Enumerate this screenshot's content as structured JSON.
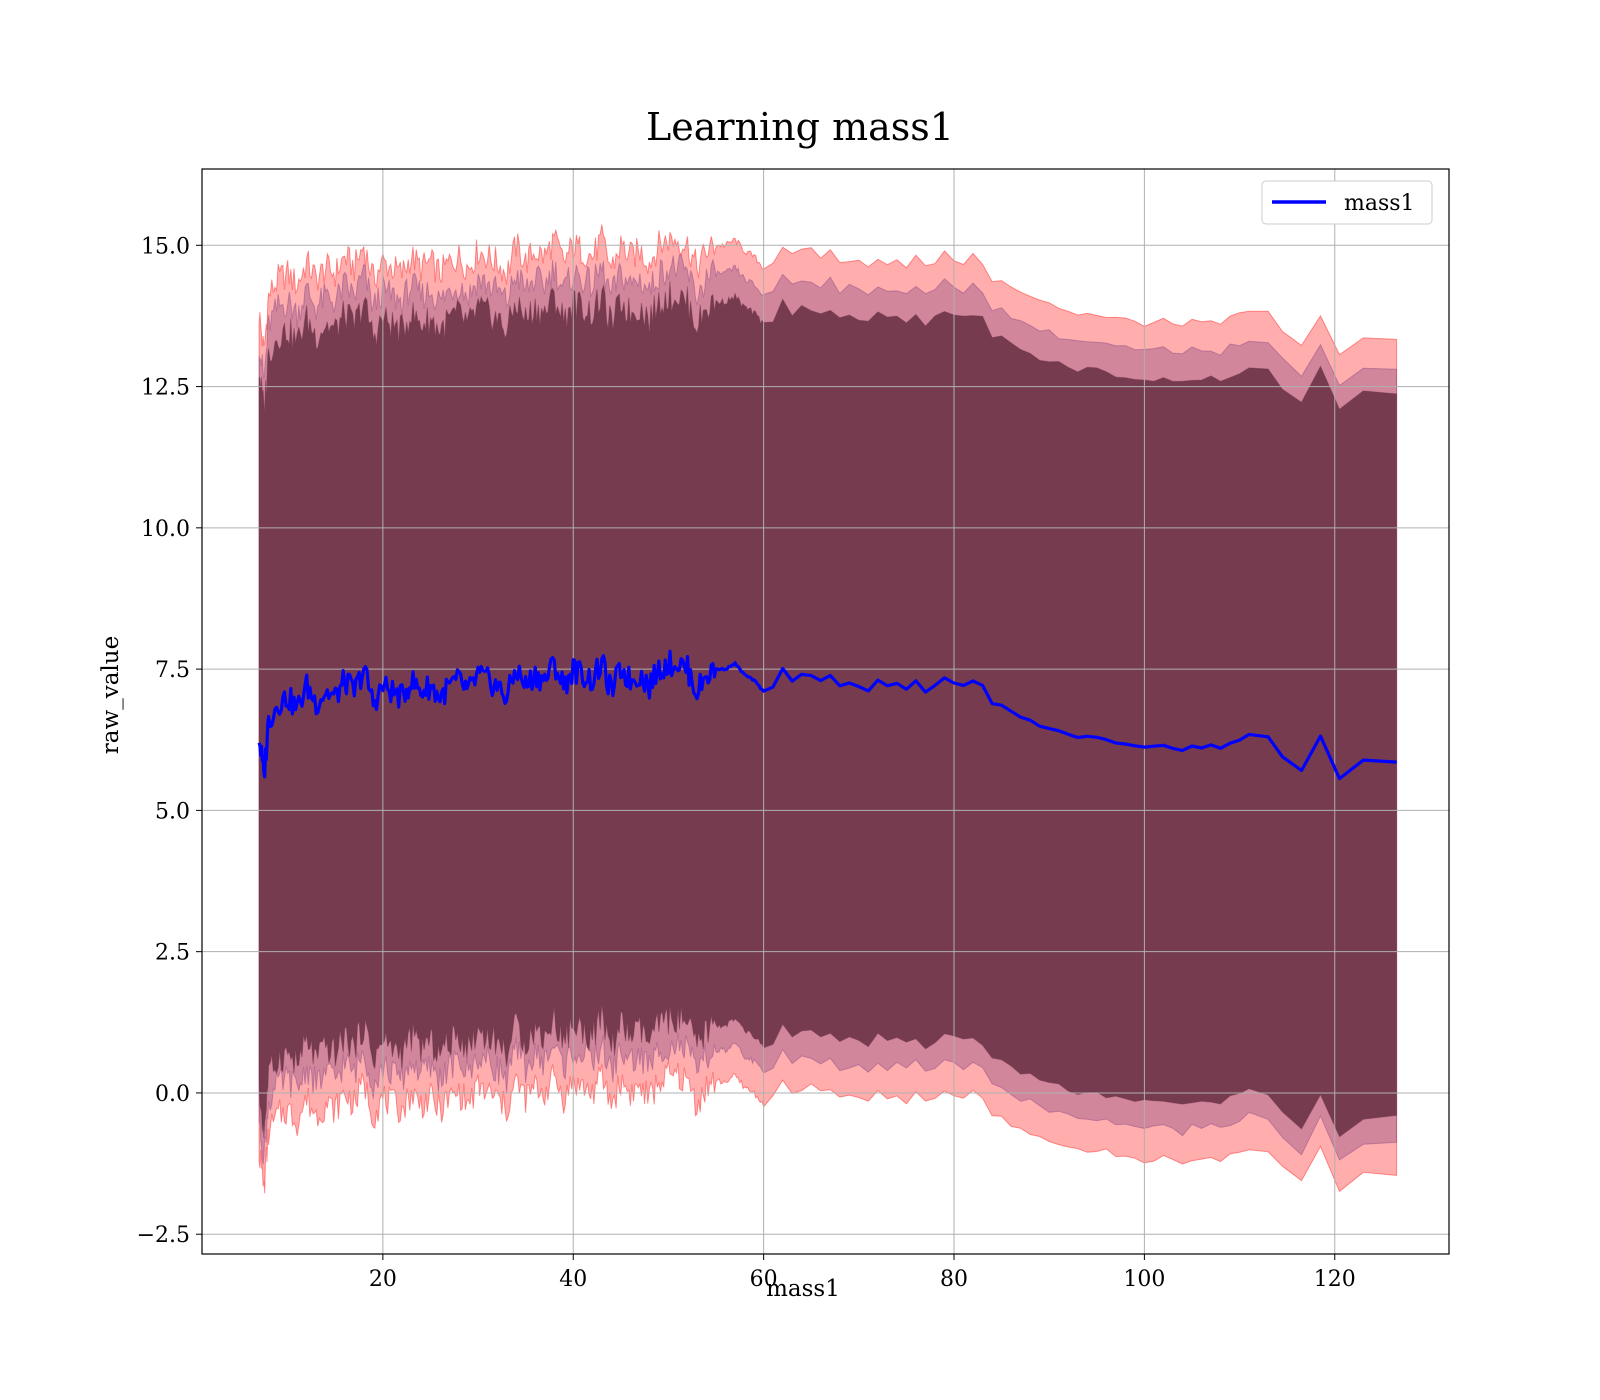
{
  "chart_data": {
    "type": "line",
    "title": "Learning mass1",
    "xlabel": "mass1",
    "ylabel": "raw_value",
    "xlim": [
      1,
      132
    ],
    "ylim": [
      -2.85,
      16.35
    ],
    "xticks": [
      20,
      40,
      60,
      80,
      100,
      120
    ],
    "yticks": [
      -2.5,
      0.0,
      2.5,
      5.0,
      7.5,
      10.0,
      12.5,
      15.0
    ],
    "ytick_labels": [
      "−2.5",
      "0.0",
      "2.5",
      "5.0",
      "7.5",
      "10.0",
      "12.5",
      "15.0"
    ],
    "grid": true,
    "legend_position": "top-right",
    "colors": {
      "line": "#0000ff",
      "band_outer": "#ff0000",
      "band_inner": "#7f3f7f",
      "band_core": "#6b3346",
      "grid": "#b0b0b0"
    },
    "series": [
      {
        "name": "mass1",
        "x": [
          7,
          7.5,
          8,
          9,
          10,
          11,
          12,
          13,
          14,
          15,
          16,
          17,
          18,
          19,
          20,
          21,
          22,
          23,
          24,
          25,
          26,
          27,
          28,
          29,
          30,
          31,
          32,
          33,
          34,
          35,
          36,
          37,
          38,
          39,
          40,
          41,
          42,
          43,
          44,
          45,
          46,
          47,
          48,
          49,
          50,
          51,
          52,
          53,
          54,
          55,
          56,
          57,
          58,
          59,
          60,
          61,
          62,
          63,
          64,
          65,
          66,
          67,
          68,
          69,
          70,
          71,
          72,
          73,
          74,
          75,
          76,
          77,
          78,
          79,
          80,
          81,
          82,
          83,
          84,
          85,
          86,
          87,
          88,
          89,
          90,
          91,
          92,
          93,
          94,
          95,
          96,
          97,
          98,
          99,
          100,
          101,
          102,
          103,
          104,
          105,
          106,
          107,
          108,
          109,
          110,
          111,
          113,
          114.5,
          116.5,
          118.5,
          120.5,
          123,
          126.5
        ],
        "y": [
          6.3,
          5.6,
          6.6,
          6.9,
          7.0,
          6.8,
          7.2,
          6.9,
          7.1,
          7.0,
          7.3,
          7.1,
          7.5,
          6.9,
          7.2,
          7.1,
          7.0,
          7.3,
          7.1,
          7.2,
          7.0,
          7.2,
          7.3,
          7.1,
          7.4,
          7.3,
          7.2,
          7.0,
          7.5,
          7.2,
          7.4,
          7.3,
          7.6,
          7.2,
          7.5,
          7.4,
          7.3,
          7.6,
          7.1,
          7.5,
          7.3,
          7.4,
          7.2,
          7.5,
          7.6,
          7.6,
          7.5,
          7.1,
          7.4,
          7.5,
          7.5,
          7.6,
          7.4,
          7.3,
          7.1,
          7.2,
          7.5,
          7.3,
          7.4,
          7.4,
          7.3,
          7.4,
          7.2,
          7.25,
          7.2,
          7.1,
          7.3,
          7.2,
          7.25,
          7.15,
          7.3,
          7.1,
          7.2,
          7.35,
          7.25,
          7.2,
          7.3,
          7.2,
          6.9,
          6.85,
          6.75,
          6.65,
          6.6,
          6.5,
          6.45,
          6.4,
          6.35,
          6.3,
          6.3,
          6.28,
          6.25,
          6.2,
          6.18,
          6.15,
          6.12,
          6.15,
          6.15,
          6.1,
          6.05,
          6.15,
          6.1,
          6.15,
          6.1,
          6.2,
          6.25,
          6.35,
          6.3,
          5.95,
          5.7,
          6.3,
          5.55,
          5.88,
          5.85
        ]
      }
    ],
    "bands": [
      {
        "name": "outer",
        "lower_offset": -7.3,
        "upper_offset": 7.5
      },
      {
        "name": "inner",
        "lower_offset": -6.75,
        "upper_offset": 7.0
      },
      {
        "name": "core",
        "lower_offset": -6.3,
        "upper_offset": 6.5
      }
    ]
  }
}
